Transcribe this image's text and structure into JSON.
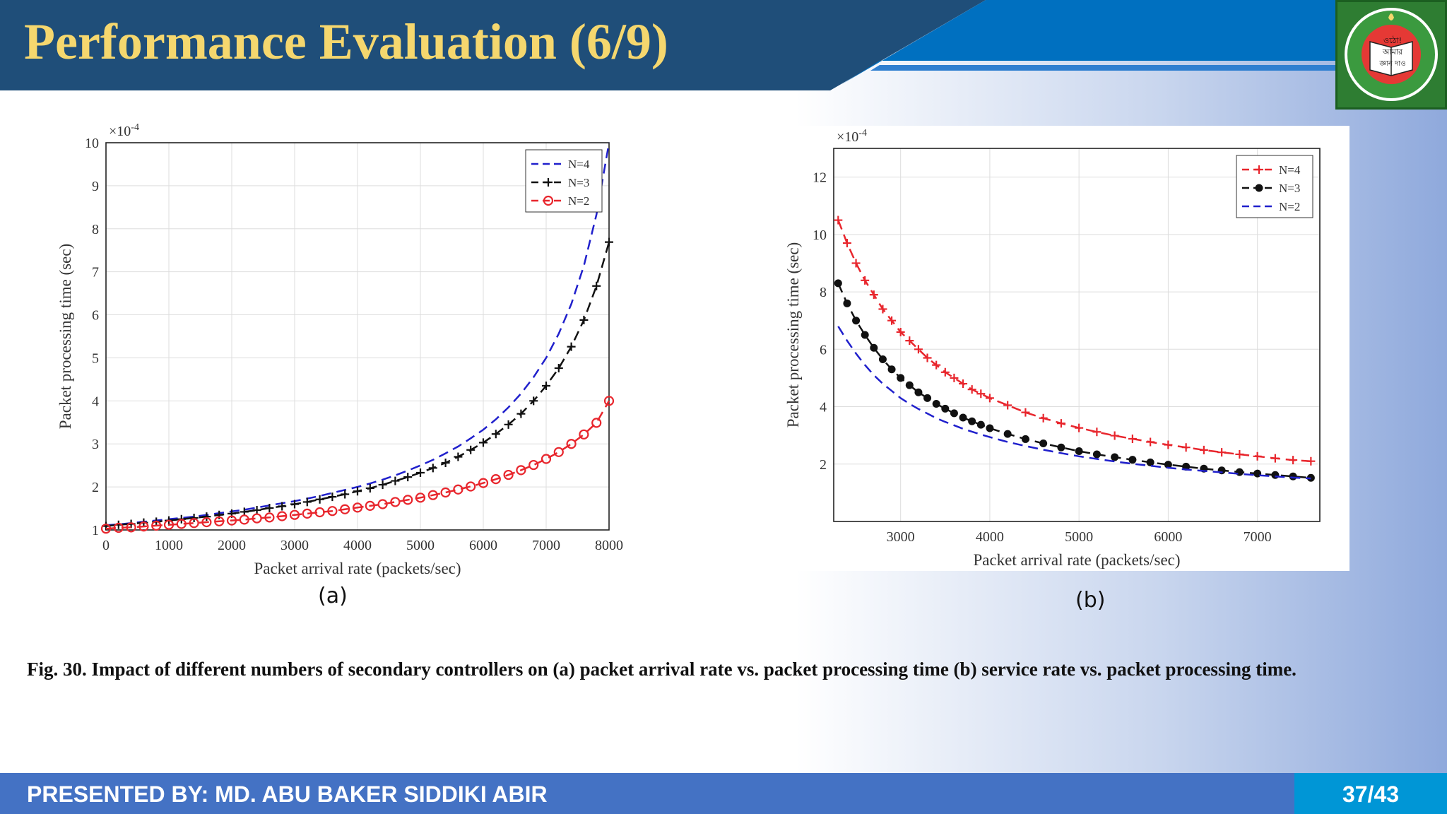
{
  "slide": {
    "title": "Performance Evaluation (6/9)",
    "caption": "Fig. 30. Impact of different numbers of secondary controllers on (a) packet arrival rate vs. packet processing time (b) service rate vs. packet processing time.",
    "panel_a_label": "(a)",
    "panel_b_label": "(b)",
    "presenter": "PRESENTED BY: MD. ABU BAKER SIDDIKI ABIR",
    "page": "37/43",
    "logo_text": [
      "ওঠো!",
      "আমার",
      "জ্ঞান দাও"
    ]
  },
  "colors": {
    "header_bar": "#1f4e79",
    "header_accent": "#0070c0",
    "title_text": "#f5d76e",
    "footer_bar": "#4472c4",
    "page_box": "#0096d6",
    "series_red": "#e8262d",
    "series_black": "#111111",
    "series_blue": "#2020cc"
  },
  "chart_data": [
    {
      "type": "line",
      "panel": "(a)",
      "xlabel": "Packet arrival rate (packets/sec)",
      "ylabel": "Packet processing time (sec)",
      "exponent_label": "×10-4",
      "xlim": [
        0,
        8000
      ],
      "ylim": [
        1,
        10
      ],
      "xticks": [
        0,
        1000,
        2000,
        3000,
        4000,
        5000,
        6000,
        7000,
        8000
      ],
      "yticks": [
        1,
        2,
        3,
        4,
        5,
        6,
        7,
        8,
        9,
        10
      ],
      "grid": true,
      "legend_position": "top-right",
      "x": [
        0,
        200,
        400,
        600,
        800,
        1000,
        1200,
        1400,
        1600,
        1800,
        2000,
        2200,
        2400,
        2600,
        2800,
        3000,
        3200,
        3400,
        3600,
        3800,
        4000,
        4200,
        4400,
        4600,
        4800,
        5000,
        5200,
        5400,
        5600,
        5800,
        6000,
        6200,
        6400,
        6600,
        6800,
        7000,
        7200,
        7400,
        7600,
        7800,
        8000
      ],
      "series": [
        {
          "name": "N=4",
          "style": "dashed",
          "marker": "none",
          "color": "#2020cc",
          "values": [
            1.11,
            1.13,
            1.16,
            1.19,
            1.22,
            1.25,
            1.28,
            1.31,
            1.35,
            1.39,
            1.43,
            1.47,
            1.52,
            1.57,
            1.62,
            1.67,
            1.73,
            1.79,
            1.86,
            1.93,
            2.0,
            2.08,
            2.17,
            2.27,
            2.38,
            2.5,
            2.63,
            2.78,
            2.94,
            3.13,
            3.33,
            3.57,
            3.85,
            4.17,
            4.55,
            5.0,
            5.56,
            6.25,
            7.14,
            8.33,
            10.0
          ]
        },
        {
          "name": "N=3",
          "style": "dashed",
          "marker": "+",
          "color": "#111111",
          "values": [
            1.09,
            1.12,
            1.14,
            1.17,
            1.19,
            1.22,
            1.25,
            1.28,
            1.31,
            1.35,
            1.38,
            1.42,
            1.46,
            1.51,
            1.55,
            1.6,
            1.65,
            1.71,
            1.77,
            1.83,
            1.9,
            1.97,
            2.05,
            2.14,
            2.23,
            2.33,
            2.44,
            2.56,
            2.7,
            2.86,
            3.03,
            3.23,
            3.45,
            3.7,
            4.0,
            4.35,
            4.76,
            5.26,
            5.88,
            6.67,
            7.69
          ]
        },
        {
          "name": "N=2",
          "style": "dashed",
          "marker": "o",
          "color": "#e8262d",
          "values": [
            1.03,
            1.05,
            1.06,
            1.08,
            1.1,
            1.12,
            1.14,
            1.16,
            1.18,
            1.2,
            1.22,
            1.24,
            1.27,
            1.29,
            1.32,
            1.35,
            1.38,
            1.41,
            1.44,
            1.48,
            1.52,
            1.56,
            1.6,
            1.65,
            1.7,
            1.75,
            1.81,
            1.87,
            1.94,
            2.01,
            2.09,
            2.18,
            2.28,
            2.39,
            2.51,
            2.65,
            2.81,
            3.0,
            3.22,
            3.49,
            4.0
          ]
        }
      ]
    },
    {
      "type": "line",
      "panel": "(b)",
      "xlabel": "Packet arrival rate (packets/sec)",
      "ylabel": "Packet processing time (sec)",
      "exponent_label": "×10-4",
      "xlim": [
        2250,
        7700
      ],
      "ylim": [
        0,
        13
      ],
      "xticks": [
        3000,
        4000,
        5000,
        6000,
        7000
      ],
      "yticks": [
        2,
        4,
        6,
        8,
        10,
        12
      ],
      "grid": true,
      "legend_position": "top-right",
      "x": [
        2300,
        2400,
        2500,
        2600,
        2700,
        2800,
        2900,
        3000,
        3100,
        3200,
        3300,
        3400,
        3500,
        3600,
        3700,
        3800,
        3900,
        4000,
        4200,
        4400,
        4600,
        4800,
        5000,
        5200,
        5400,
        5600,
        5800,
        6000,
        6200,
        6400,
        6600,
        6800,
        7000,
        7200,
        7400,
        7600
      ],
      "series": [
        {
          "name": "N=4",
          "style": "dashed",
          "marker": "+",
          "color": "#e8262d",
          "values": [
            10.5,
            9.7,
            9.0,
            8.4,
            7.9,
            7.4,
            7.0,
            6.6,
            6.3,
            6.0,
            5.7,
            5.45,
            5.2,
            5.0,
            4.8,
            4.6,
            4.45,
            4.3,
            4.05,
            3.8,
            3.6,
            3.42,
            3.26,
            3.12,
            2.99,
            2.88,
            2.77,
            2.67,
            2.58,
            2.49,
            2.41,
            2.34,
            2.27,
            2.2,
            2.14,
            2.1
          ]
        },
        {
          "name": "N=3",
          "style": "dashed",
          "marker": "dot",
          "color": "#111111",
          "values": [
            8.3,
            7.6,
            7.0,
            6.5,
            6.05,
            5.65,
            5.3,
            5.0,
            4.75,
            4.5,
            4.3,
            4.1,
            3.93,
            3.77,
            3.62,
            3.49,
            3.37,
            3.25,
            3.05,
            2.87,
            2.72,
            2.58,
            2.45,
            2.34,
            2.24,
            2.15,
            2.06,
            1.98,
            1.91,
            1.84,
            1.78,
            1.72,
            1.67,
            1.62,
            1.57,
            1.52
          ]
        },
        {
          "name": "N=2",
          "style": "dashed",
          "marker": "none",
          "color": "#2020cc",
          "values": [
            6.8,
            6.3,
            5.85,
            5.45,
            5.1,
            4.8,
            4.55,
            4.3,
            4.1,
            3.92,
            3.76,
            3.6,
            3.47,
            3.35,
            3.23,
            3.13,
            3.03,
            2.94,
            2.77,
            2.63,
            2.5,
            2.38,
            2.27,
            2.18,
            2.09,
            2.01,
            1.94,
            1.87,
            1.81,
            1.76,
            1.71,
            1.66,
            1.61,
            1.57,
            1.53,
            1.5
          ]
        }
      ]
    }
  ]
}
